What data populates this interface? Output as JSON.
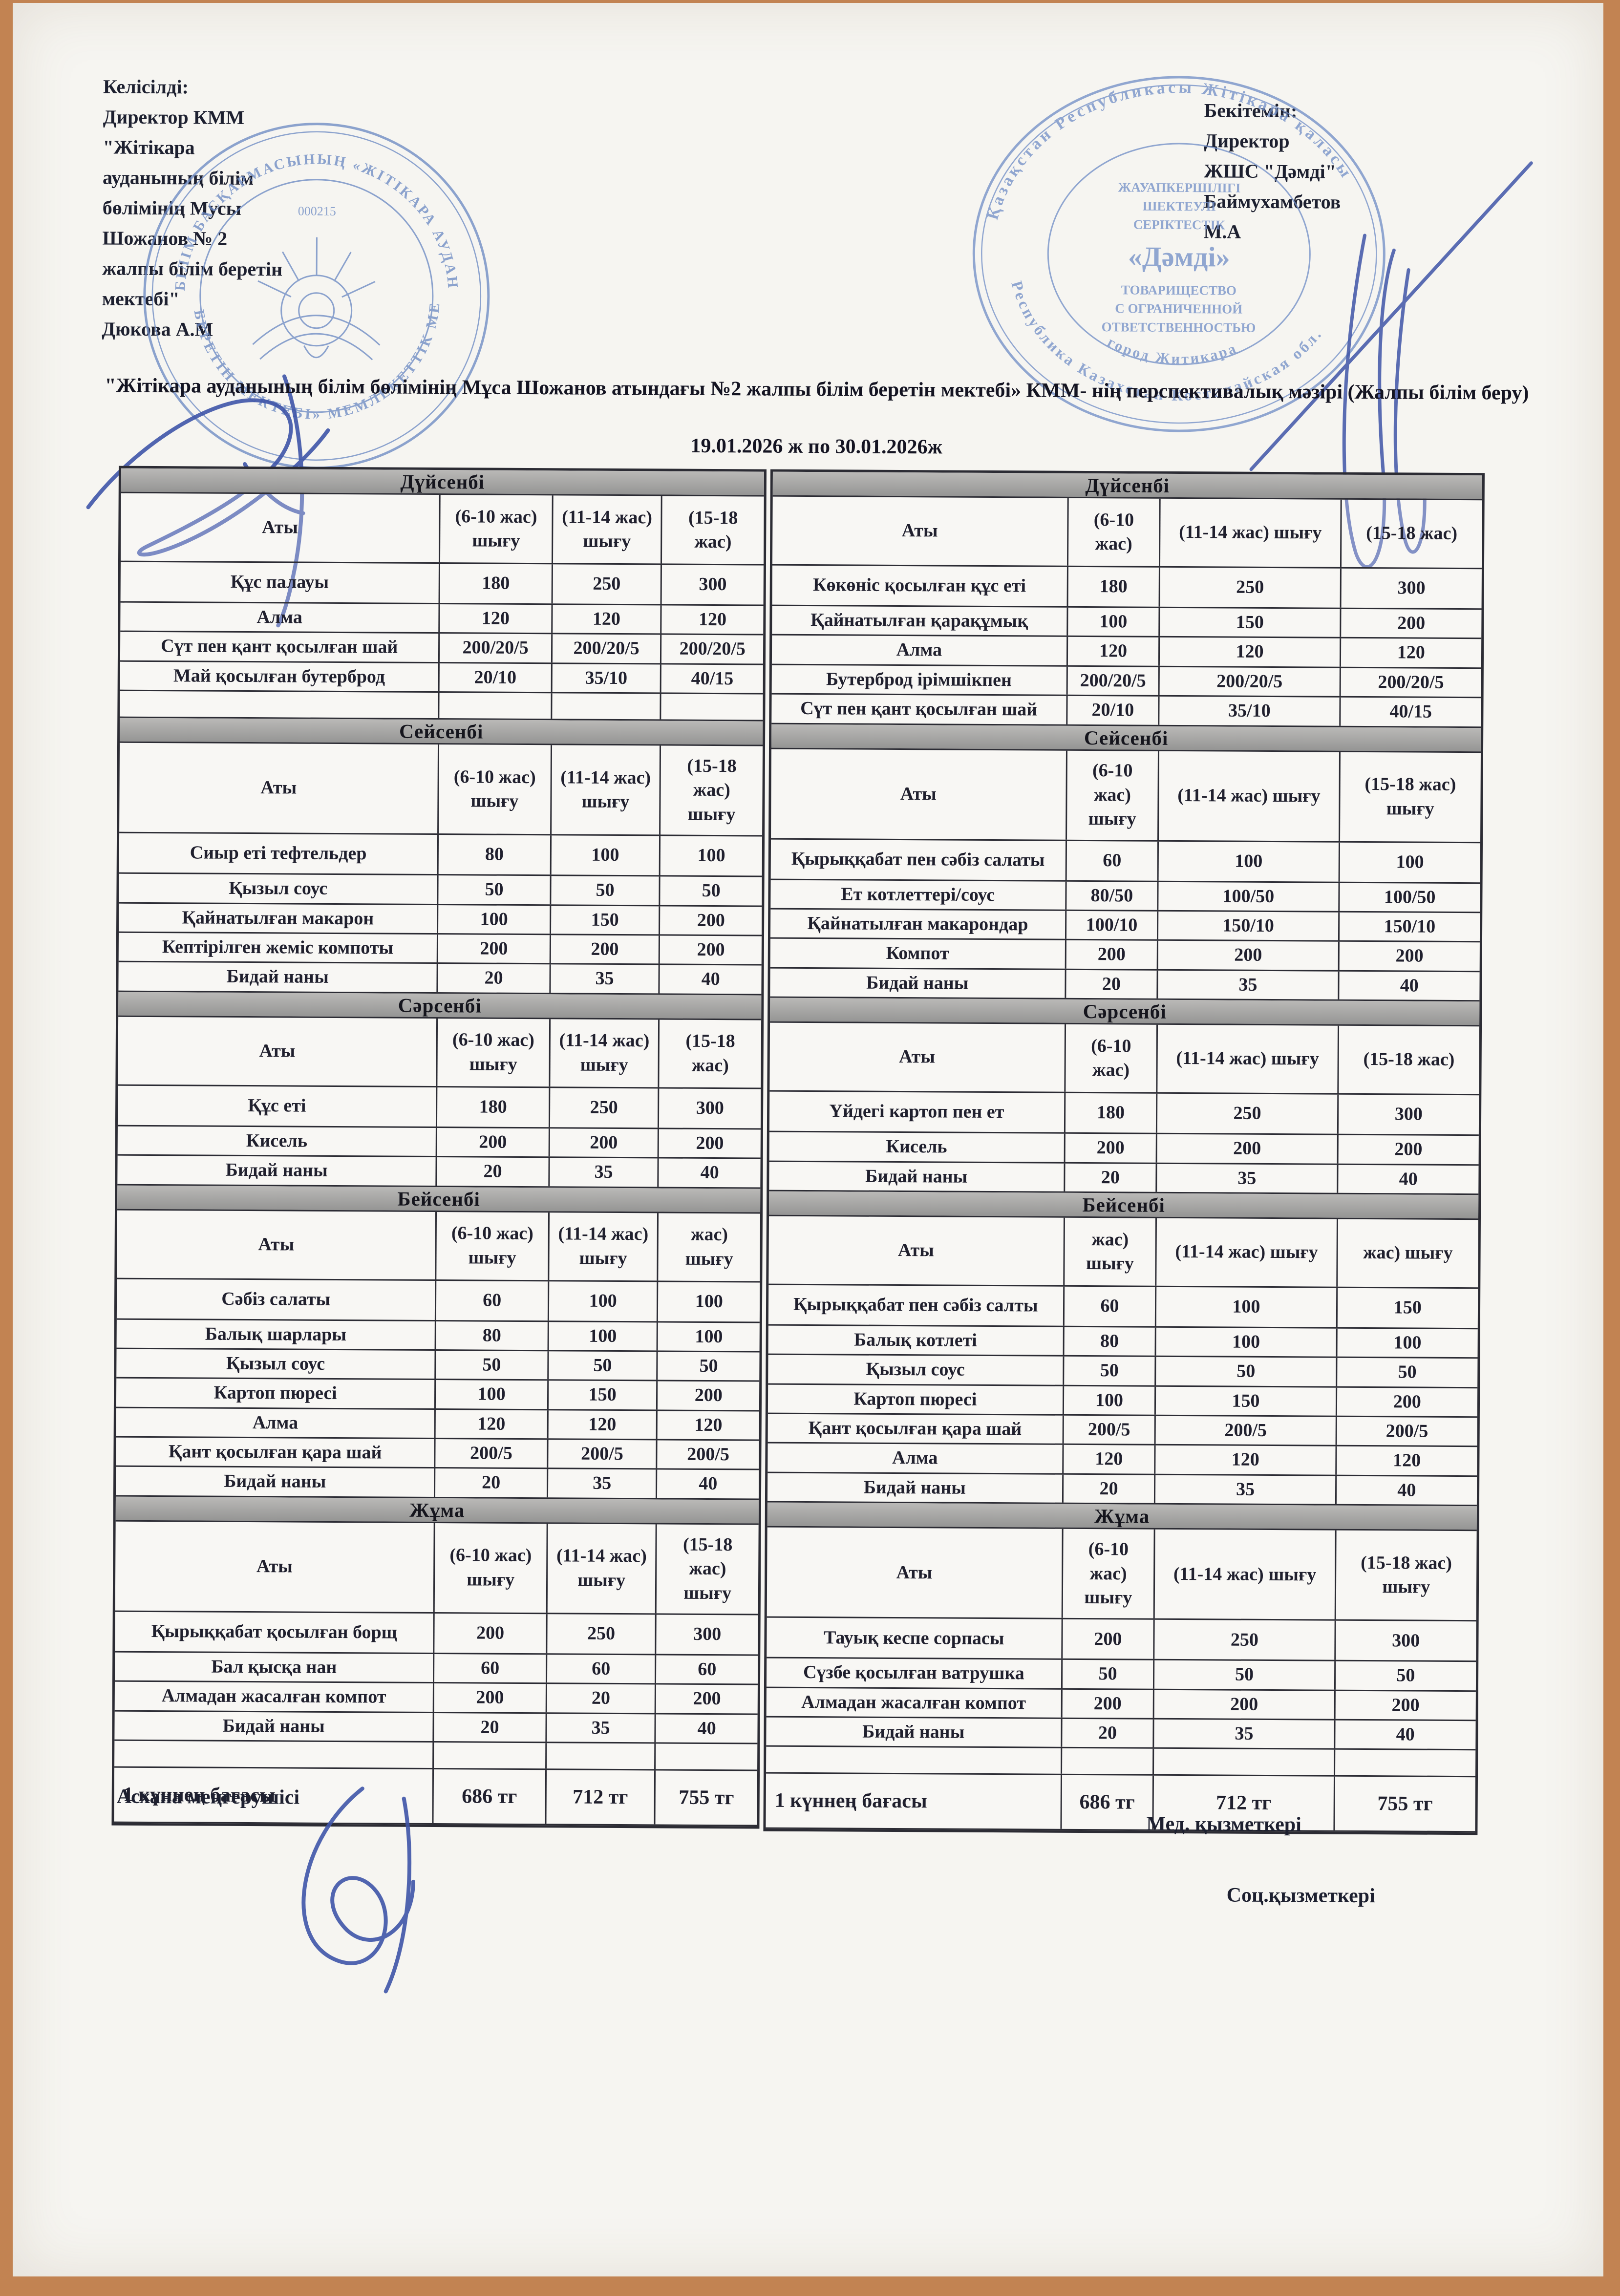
{
  "header": {
    "approved_left": "Келісілді:\nДиректор КММ\n\"Жітікара\nауданының білім\nбөлімінің Мусы\nШожанов  № 2\nжалпы білім беретін\nмектебі\"\nДюкова А.М",
    "approved_right": "Бекітемін:\nДиректор\nЖШС \"Дәмді\"\nБаймухамбетов\nМ.А"
  },
  "title": {
    "text": "\"Жітікара ауданының білім бөлімінің Мұса Шожанов атындағы №2 жалпы білім беретін мектебі» КММ- нің перспективалық мәзірі (Жалпы білім беру)",
    "date": "19.01.2026 ж по 30.01.2026ж"
  },
  "left_table": {
    "days": [
      {
        "day": "Дүйсенбі",
        "headers": [
          "Аты",
          "(6-10 жас) шығу",
          "(11-14 жас) шығу",
          "(15-18 жас)"
        ],
        "rows": [
          [
            "Құс палауы",
            "180",
            "250",
            "300"
          ],
          [
            "Алма",
            "120",
            "120",
            "120"
          ],
          [
            "Сүт пен қант қосылған шай",
            "200/20/5",
            "200/20/5",
            "200/20/5"
          ],
          [
            "Май қосылған бутерброд",
            "20/10",
            "35/10",
            "40/15"
          ],
          [
            "",
            "",
            "",
            ""
          ]
        ]
      },
      {
        "day": "Сейсенбі",
        "headers": [
          "Аты",
          "(6-10 жас) шығу",
          "(11-14 жас) шығу",
          "(15-18 жас) шығу"
        ],
        "rows": [
          [
            "Сиыр еті тефтельдер",
            "80",
            "100",
            "100"
          ],
          [
            "Қызыл соус",
            "50",
            "50",
            "50"
          ],
          [
            "Қайнатылған макарон",
            "100",
            "150",
            "200"
          ],
          [
            "Кептірілген жеміс компоты",
            "200",
            "200",
            "200"
          ],
          [
            "Бидай наны",
            "20",
            "35",
            "40"
          ]
        ]
      },
      {
        "day": "Сәрсенбі",
        "headers": [
          "Аты",
          "(6-10 жас) шығу",
          "(11-14 жас) шығу",
          "(15-18 жас)"
        ],
        "rows": [
          [
            "Құс еті",
            "180",
            "250",
            "300"
          ],
          [
            "Кисель",
            "200",
            "200",
            "200"
          ],
          [
            "Бидай наны",
            "20",
            "35",
            "40"
          ]
        ]
      },
      {
        "day": "Бейсенбі",
        "headers": [
          "Аты",
          "(6-10 жас) шығу",
          "(11-14 жас) шығу",
          "жас) шығу"
        ],
        "rows": [
          [
            "Сәбіз салаты",
            "60",
            "100",
            "100"
          ],
          [
            "Балық шарлары",
            "80",
            "100",
            "100"
          ],
          [
            "Қызыл соус",
            "50",
            "50",
            "50"
          ],
          [
            "Картоп пюресі",
            "100",
            "150",
            "200"
          ],
          [
            "Алма",
            "120",
            "120",
            "120"
          ],
          [
            "Қант қосылған қара шай",
            "200/5",
            "200/5",
            "200/5"
          ],
          [
            "Бидай наны",
            "20",
            "35",
            "40"
          ]
        ]
      },
      {
        "day": "Жұма",
        "headers": [
          "Аты",
          "(6-10 жас) шығу",
          "(11-14 жас) шығу",
          "(15-18 жас) шығу"
        ],
        "rows": [
          [
            "Қырыққабат қосылған борщ",
            "200",
            "250",
            "300"
          ],
          [
            "Бал қысқа нан",
            "60",
            "60",
            "60"
          ],
          [
            "Алмадан жасалған компот",
            "200",
            "20",
            "200"
          ],
          [
            "Бидай наны",
            "20",
            "35",
            "40"
          ],
          [
            "",
            "",
            "",
            ""
          ]
        ]
      }
    ],
    "price": {
      "label": "1 күннең бағасы",
      "values": [
        "686 тг",
        "712 тг",
        "755 тг"
      ]
    }
  },
  "right_table": {
    "days": [
      {
        "day": "Дүйсенбі",
        "headers": [
          "Аты",
          "(6-10 жас)",
          "(11-14 жас) шығу",
          "(15-18 жас)"
        ],
        "rows": [
          [
            "Көкөніс қосылған құс еті",
            "180",
            "250",
            "300"
          ],
          [
            "Қайнатылған қарақұмық",
            "100",
            "150",
            "200"
          ],
          [
            "Алма",
            "120",
            "120",
            "120"
          ],
          [
            "Бутерброд ірімшікпен",
            "200/20/5",
            "200/20/5",
            "200/20/5"
          ],
          [
            "Сүт пен қант қосылған шай",
            "20/10",
            "35/10",
            "40/15"
          ]
        ]
      },
      {
        "day": "Сейсенбі",
        "headers": [
          "Аты",
          "(6-10 жас) шығу",
          "(11-14 жас) шығу",
          "(15-18 жас) шығу"
        ],
        "rows": [
          [
            "Қырыққабат пен сәбіз салаты",
            "60",
            "100",
            "100"
          ],
          [
            "Ет котлеттері/соус",
            "80/50",
            "100/50",
            "100/50"
          ],
          [
            "Қайнатылған макарондар",
            "100/10",
            "150/10",
            "150/10"
          ],
          [
            "Компот",
            "200",
            "200",
            "200"
          ],
          [
            "Бидай наны",
            "20",
            "35",
            "40"
          ]
        ]
      },
      {
        "day": "Сәрсенбі",
        "headers": [
          "Аты",
          "(6-10 жас)",
          "(11-14 жас) шығу",
          "(15-18 жас)"
        ],
        "rows": [
          [
            "Үйдегі картоп пен ет",
            "180",
            "250",
            "300"
          ],
          [
            "Кисель",
            "200",
            "200",
            "200"
          ],
          [
            "Бидай наны",
            "20",
            "35",
            "40"
          ]
        ]
      },
      {
        "day": "Бейсенбі",
        "headers": [
          "Аты",
          "жас) шығу",
          "(11-14 жас) шығу",
          "жас) шығу"
        ],
        "rows": [
          [
            "Қырыққабат пен сәбіз салты",
            "60",
            "100",
            "150"
          ],
          [
            "Балық котлеті",
            "80",
            "100",
            "100"
          ],
          [
            "Қызыл соус",
            "50",
            "50",
            "50"
          ],
          [
            "Картоп пюресі",
            "100",
            "150",
            "200"
          ],
          [
            "Қант қосылған қара шай",
            "200/5",
            "200/5",
            "200/5"
          ],
          [
            "Алма",
            "120",
            "120",
            "120"
          ],
          [
            "Бидай наны",
            "20",
            "35",
            "40"
          ]
        ]
      },
      {
        "day": "Жұма",
        "headers": [
          "Аты",
          "(6-10 жас) шығу",
          "(11-14 жас) шығу",
          "(15-18 жас) шығу"
        ],
        "rows": [
          [
            "Тауық кеспе сорпасы",
            "200",
            "250",
            "300"
          ],
          [
            "Сүзбе қосылған ватрушка",
            "50",
            "50",
            "50"
          ],
          [
            "Алмадан жасалған компот",
            "200",
            "200",
            "200"
          ],
          [
            "Бидай наны",
            "20",
            "35",
            "40"
          ],
          [
            "",
            "",
            "",
            ""
          ]
        ]
      }
    ],
    "price": {
      "label": "1 күннең бағасы",
      "values": [
        "686 тг",
        "712 тг",
        "755 тг"
      ]
    }
  },
  "footer": {
    "canteen_manager": "Асхана меңгерушісі",
    "medical_worker": "Мед. қызметкері",
    "social_worker": "Соц.қызметкері"
  },
  "stamps": {
    "left": {
      "ring_top": "БІЛІМ БАСҚАРМАСЫНЫҢ «ЖІТІКАРА АУДАНЫНДАҒЫ № 2 ЖАЛПЫ БІЛІМ",
      "ring_bottom": "БЕРЕТІН МЕКТЕБІ» МЕМЛЕКЕТТІК МЕКЕМЕСІ",
      "number": "000215"
    },
    "right": {
      "ring_top": "Қазақстан Республикасы Жітікара қаласы",
      "ring_bottom": "Республика Казахстан Костанайская обл.",
      "ring_city": "город Житикара",
      "inner_lines": [
        "ЖАУАПКЕРШІЛІГІ",
        "ШЕКТЕУЛІ",
        "СЕРІКТЕСТІК",
        "«Дәмді»",
        "ТОВАРИЩЕСТВО",
        "С ОГРАНИЧЕННОЙ",
        "ОТВЕТСТВЕННОСТЬЮ"
      ]
    }
  }
}
